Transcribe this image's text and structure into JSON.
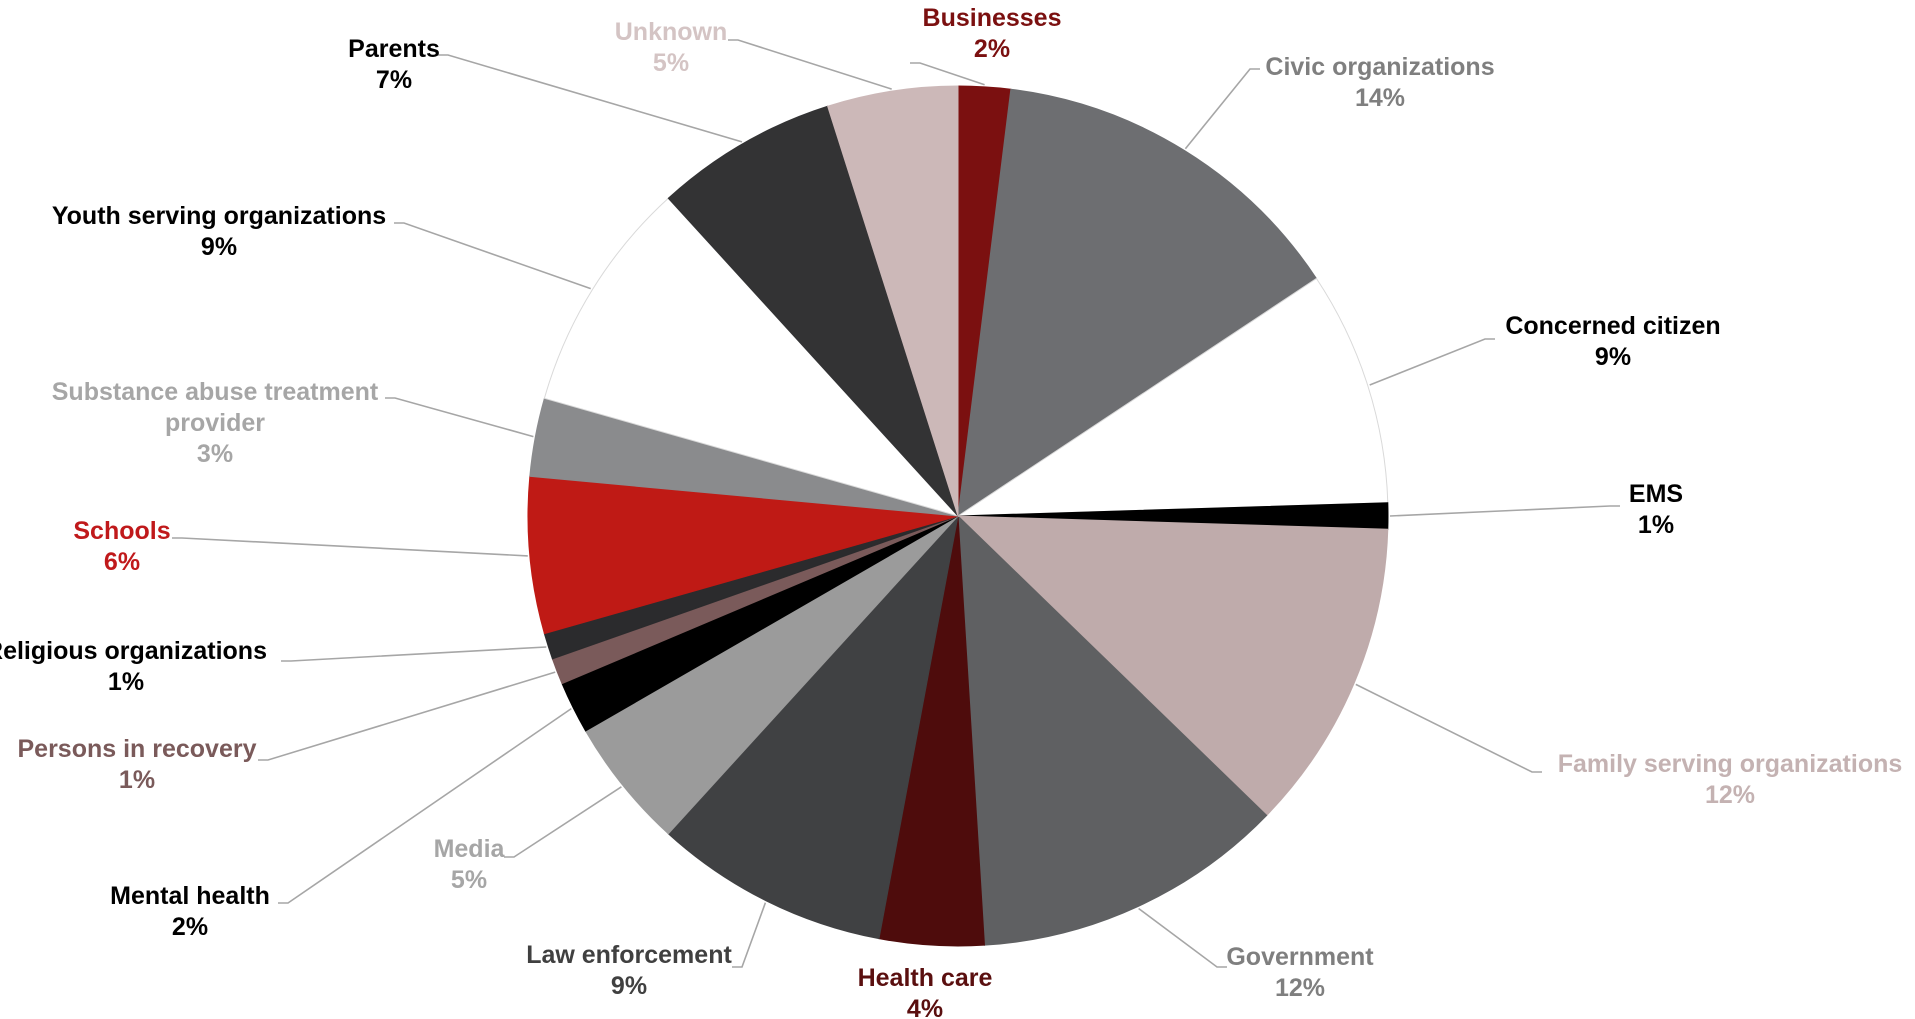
{
  "chart_data": {
    "type": "pie",
    "title": "",
    "unit": "%",
    "slices": [
      {
        "label": "Businesses",
        "value": 2,
        "value_label": "2%",
        "color": "#7b1010",
        "label_color": "#7b1010"
      },
      {
        "label": "Civic organizations",
        "value": 14,
        "value_label": "14%",
        "color": "#6d6e71",
        "label_color": "#7f7f7f"
      },
      {
        "label": "Concerned citizen",
        "value": 9,
        "value_label": "9%",
        "color": "#ffffff",
        "label_color": "#000000"
      },
      {
        "label": "EMS",
        "value": 1,
        "value_label": "1%",
        "color": "#000000",
        "label_color": "#000000"
      },
      {
        "label": "Family serving organizations",
        "value": 12,
        "value_label": "12%",
        "color": "#bfabab",
        "label_color": "#c4b2b2"
      },
      {
        "label": "Government",
        "value": 12,
        "value_label": "12%",
        "color": "#5f6062",
        "label_color": "#7f7f7f"
      },
      {
        "label": "Health care",
        "value": 4,
        "value_label": "4%",
        "color": "#4e0c0c",
        "label_color": "#5a0f0f"
      },
      {
        "label": "Law enforcement",
        "value": 9,
        "value_label": "9%",
        "color": "#404143",
        "label_color": "#404040"
      },
      {
        "label": "Media",
        "value": 5,
        "value_label": "5%",
        "color": "#9b9b9b",
        "label_color": "#a6a6a6"
      },
      {
        "label": "Mental health",
        "value": 2,
        "value_label": "2%",
        "color": "#000000",
        "label_color": "#000000"
      },
      {
        "label": "Persons in recovery",
        "value": 1,
        "value_label": "1%",
        "color": "#7a5a5a",
        "label_color": "#7a5a5a"
      },
      {
        "label": "Religious organizations",
        "value": 1,
        "value_label": "1%",
        "color": "#2b2b2d",
        "label_color": "#000000"
      },
      {
        "label": "Schools",
        "value": 6,
        "value_label": "6%",
        "color": "#bf1a15",
        "label_color": "#c0191b"
      },
      {
        "label": "Substance abuse treatment provider",
        "value": 3,
        "value_label": "3%",
        "color": "#8a8b8d",
        "label_color": "#a6a6a6"
      },
      {
        "label": "Youth serving organizations",
        "value": 9,
        "value_label": "9%",
        "color": "#ffffff",
        "label_color": "#000000"
      },
      {
        "label": "Parents",
        "value": 7,
        "value_label": "7%",
        "color": "#333334",
        "label_color": "#000000"
      },
      {
        "label": "Unknown",
        "value": 5,
        "value_label": "5%",
        "color": "#ccb8b8",
        "label_color": "#d4c4c4"
      }
    ],
    "start_angle_deg": 0,
    "direction": "clockwise",
    "legend": "none",
    "data_labels": "outside with leader lines"
  }
}
